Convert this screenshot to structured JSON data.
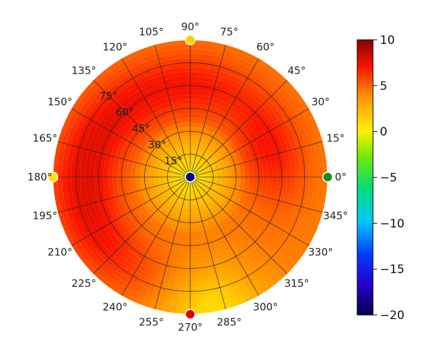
{
  "chart_data": {
    "type": "heatmap",
    "projection": "polar",
    "description": "polar colour map (elevation/azimuth style) with azimuth labels every 15 degrees and radial rings every 15 degrees",
    "azimuth_labels": [
      "0°",
      "15°",
      "30°",
      "45°",
      "60°",
      "75°",
      "90°",
      "105°",
      "120°",
      "135°",
      "150°",
      "165°",
      "180°",
      "195°",
      "210°",
      "225°",
      "240°",
      "255°",
      "270°",
      "285°",
      "300°",
      "315°",
      "330°",
      "345°"
    ],
    "radial_labels": [
      "15°",
      "30°",
      "45°",
      "60°",
      "75°"
    ],
    "radial_label_angle_deg": 135,
    "grid": true,
    "colorbar": {
      "placement": "right",
      "colormap": "jet-like (dark blue → blue → cyan → green → yellow → orange → red → dark red)",
      "range": [
        -20,
        10
      ],
      "tick_labels": [
        "10",
        "5",
        "0",
        "−5",
        "−10",
        "−15",
        "−20"
      ]
    },
    "field_description": "Values are roughly 0 (yellow) near the centre, rising to about 3–7 (orange/red) across most of the disc; low near 270° rim (~0–1).",
    "hotspots": [
      {
        "azimuth_deg": 20,
        "zenith_deg": 55,
        "value": 7
      },
      {
        "azimuth_deg": 85,
        "zenith_deg": 60,
        "value": 6.5
      },
      {
        "azimuth_deg": 135,
        "zenith_deg": 60,
        "value": 6.5
      },
      {
        "azimuth_deg": 175,
        "zenith_deg": 70,
        "value": 6.5
      },
      {
        "azimuth_deg": 215,
        "zenith_deg": 70,
        "value": 6.5
      }
    ],
    "markers": [
      {
        "azimuth_deg": 0,
        "zenith_deg": 90,
        "color": "#1a8a1a"
      },
      {
        "azimuth_deg": 90,
        "zenith_deg": 90,
        "color": "#ffd000"
      },
      {
        "azimuth_deg": 180,
        "zenith_deg": 90,
        "color": "#ffe000"
      },
      {
        "azimuth_deg": 270,
        "zenith_deg": 90,
        "color": "#dd0000"
      },
      {
        "azimuth_deg": 0,
        "zenith_deg": 0,
        "color": "#000080"
      }
    ]
  }
}
